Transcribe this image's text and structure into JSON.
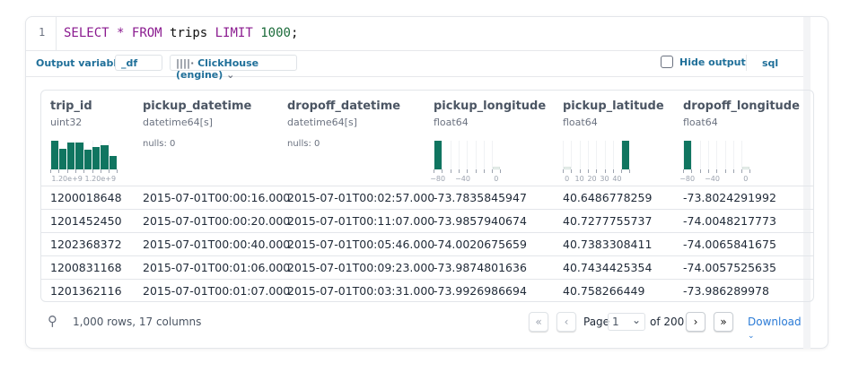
{
  "editor": {
    "line_number": "1",
    "tokens": [
      {
        "t": "SELECT",
        "c": "kw"
      },
      {
        "t": " "
      },
      {
        "t": "*",
        "c": "kw"
      },
      {
        "t": " "
      },
      {
        "t": "FROM",
        "c": "kw"
      },
      {
        "t": " trips "
      },
      {
        "t": "LIMIT",
        "c": "kw"
      },
      {
        "t": " "
      },
      {
        "t": "1000",
        "c": "num"
      },
      {
        "t": ";"
      }
    ]
  },
  "options": {
    "output_variable_label": "Output variable:",
    "output_variable_value": "_df",
    "engine": "ClickHouse (engine)",
    "engine_icon": "bars-icon",
    "hide_output_label": "Hide output",
    "hide_output_checked": false,
    "language": "sql"
  },
  "colors": {
    "accent": "#1f6f99",
    "histogram": "#107560",
    "link": "#2b7bd6"
  },
  "columns": [
    {
      "name": "trip_id",
      "type": "uint32",
      "hist": [
        93,
        67,
        88,
        88,
        64,
        74,
        79,
        44
      ],
      "ticks": [
        "1.20e+9",
        "1.20e+9"
      ]
    },
    {
      "name": "pickup_datetime",
      "type": "datetime64[s]",
      "nulls": "nulls: 0"
    },
    {
      "name": "dropoff_datetime",
      "type": "datetime64[s]",
      "nulls": "nulls: 0"
    },
    {
      "name": "pickup_longitude",
      "type": "float64",
      "hist": [
        100,
        0,
        0,
        0,
        0,
        0,
        0,
        3
      ],
      "ticks": [
        "−80",
        "−40",
        "0"
      ]
    },
    {
      "name": "pickup_latitude",
      "type": "float64",
      "hist": [
        3,
        0,
        0,
        0,
        0,
        0,
        0,
        100
      ],
      "ticks": [
        "0",
        "10",
        "20",
        "30",
        "40"
      ]
    },
    {
      "name": "dropoff_longitude",
      "type": "float64",
      "hist": [
        100,
        0,
        0,
        0,
        0,
        0,
        0,
        3
      ],
      "ticks": [
        "−80",
        "−40",
        "0"
      ]
    }
  ],
  "rows": [
    [
      "1200018648",
      "2015-07-01T00:00:16.000",
      "2015-07-01T00:02:57.000",
      "-73.7835845947",
      "40.6486778259",
      "-73.8024291992",
      "-"
    ],
    [
      "1201452450",
      "2015-07-01T00:00:20.000",
      "2015-07-01T00:11:07.000",
      "-73.9857940674",
      "40.7277755737",
      "-74.0048217773",
      "-"
    ],
    [
      "1202368372",
      "2015-07-01T00:00:40.000",
      "2015-07-01T00:05:46.000",
      "-74.0020675659",
      "40.7383308411",
      "-74.0065841675",
      "-"
    ],
    [
      "1200831168",
      "2015-07-01T00:01:06.000",
      "2015-07-01T00:09:23.000",
      "-73.9874801636",
      "40.7434425354",
      "-74.0057525635",
      "-"
    ],
    [
      "1201362116",
      "2015-07-01T00:01:07.000",
      "2015-07-01T00:03:31.000",
      "-73.9926986694",
      "40.758266449",
      "-73.986289978",
      "-"
    ]
  ],
  "footer": {
    "summary": "1,000 rows, 17 columns",
    "page_label": "Page",
    "page_value": "1",
    "of_label": "of 200",
    "download_label": "Download"
  }
}
